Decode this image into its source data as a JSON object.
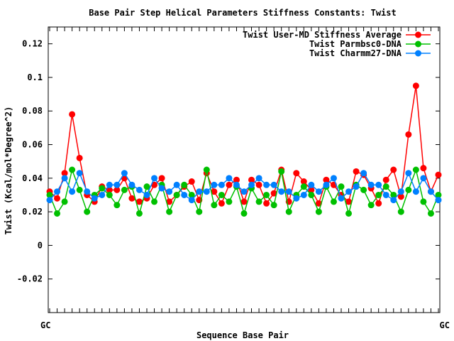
{
  "chart_data": {
    "type": "line",
    "title": "Base Pair Step Helical Parameters Stiffness Constants: Twist",
    "xlabel": "Sequence Base Pair",
    "ylabel": "Twist (Kcal/mol*Degree^2)",
    "ylim": [
      -0.04,
      0.13
    ],
    "yticks": [
      -0.02,
      0,
      0.02,
      0.04,
      0.06,
      0.08,
      0.1,
      0.12
    ],
    "ytick_labels": [
      "-0.02",
      "0",
      "0.02",
      "0.04",
      "0.06",
      "0.08",
      "0.1",
      "0.12"
    ],
    "x_tick_text_left": "GC",
    "x_tick_text_right": "GC",
    "legend_position": "top-right",
    "grid": false,
    "series": [
      {
        "name": "Twist User-MD Stiffness Average",
        "color": "#ff0000",
        "values": [
          0.032,
          0.028,
          0.043,
          0.078,
          0.052,
          0.03,
          0.026,
          0.035,
          0.033,
          0.033,
          0.04,
          0.028,
          0.026,
          0.028,
          0.036,
          0.04,
          0.026,
          0.03,
          0.035,
          0.038,
          0.027,
          0.043,
          0.032,
          0.025,
          0.036,
          0.039,
          0.026,
          0.039,
          0.036,
          0.025,
          0.031,
          0.045,
          0.026,
          0.043,
          0.038,
          0.033,
          0.025,
          0.039,
          0.036,
          0.03,
          0.026,
          0.044,
          0.042,
          0.034,
          0.025,
          0.039,
          0.045,
          0.029,
          0.066,
          0.095,
          0.046,
          0.032,
          0.042
        ]
      },
      {
        "name": "Twist Parmbsc0-DNA",
        "color": "#00c000",
        "values": [
          0.03,
          0.019,
          0.026,
          0.045,
          0.033,
          0.02,
          0.03,
          0.034,
          0.03,
          0.024,
          0.033,
          0.035,
          0.019,
          0.035,
          0.026,
          0.036,
          0.02,
          0.03,
          0.036,
          0.03,
          0.02,
          0.045,
          0.024,
          0.03,
          0.026,
          0.035,
          0.019,
          0.034,
          0.026,
          0.03,
          0.024,
          0.044,
          0.02,
          0.03,
          0.035,
          0.03,
          0.02,
          0.035,
          0.026,
          0.035,
          0.019,
          0.036,
          0.033,
          0.024,
          0.03,
          0.035,
          0.03,
          0.02,
          0.033,
          0.045,
          0.026,
          0.019,
          0.03
        ]
      },
      {
        "name": "Twist Charmm27-DNA",
        "color": "#0080ff",
        "values": [
          0.027,
          0.032,
          0.04,
          0.032,
          0.043,
          0.032,
          0.028,
          0.03,
          0.036,
          0.036,
          0.043,
          0.036,
          0.033,
          0.03,
          0.04,
          0.034,
          0.032,
          0.036,
          0.03,
          0.027,
          0.032,
          0.032,
          0.036,
          0.036,
          0.04,
          0.036,
          0.032,
          0.036,
          0.04,
          0.036,
          0.036,
          0.032,
          0.032,
          0.028,
          0.03,
          0.036,
          0.032,
          0.036,
          0.04,
          0.028,
          0.032,
          0.035,
          0.043,
          0.036,
          0.036,
          0.03,
          0.027,
          0.032,
          0.043,
          0.032,
          0.04,
          0.032,
          0.027
        ]
      }
    ]
  }
}
